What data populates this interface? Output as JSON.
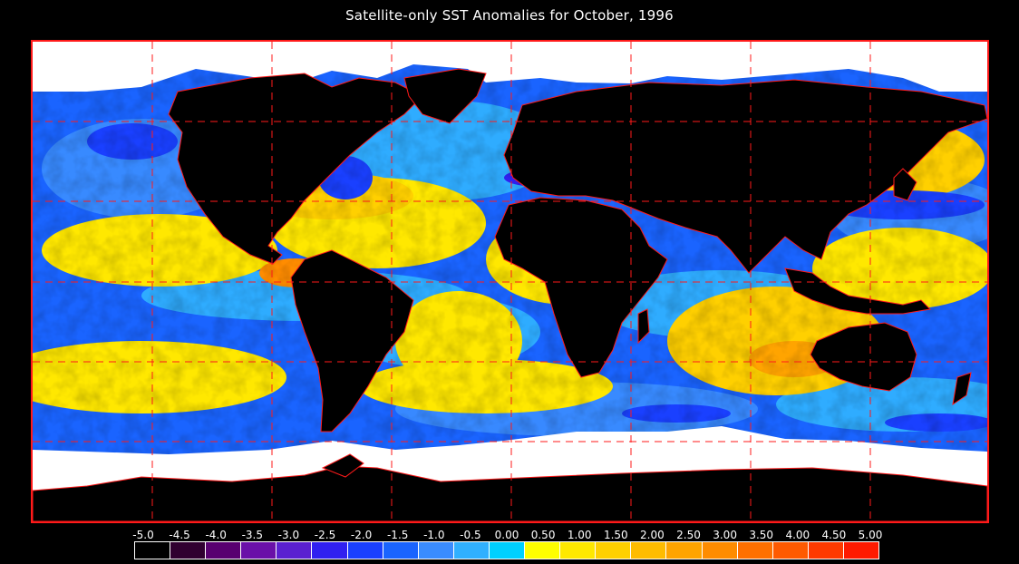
{
  "title": "Satellite-only SST Anomalies for October, 1996",
  "legend": {
    "tick_labels": [
      "-5.0",
      "-4.5",
      "-4.0",
      "-3.5",
      "-3.0",
      "-2.5",
      "-2.0",
      "-1.5",
      "-1.0",
      "-0.5",
      "0.00",
      "0.50",
      "1.00",
      "1.50",
      "2.00",
      "2.50",
      "3.00",
      "3.50",
      "4.00",
      "4.50",
      "5.00"
    ],
    "colors": [
      "#000000",
      "#300030",
      "#580070",
      "#6a10a8",
      "#5a20d0",
      "#3020f0",
      "#1a40ff",
      "#1a64ff",
      "#3a8cff",
      "#30b0ff",
      "#00d0ff",
      "#ffff00",
      "#ffe800",
      "#ffd000",
      "#ffbc00",
      "#ffa400",
      "#ff8c00",
      "#ff7000",
      "#ff5a00",
      "#ff3a00",
      "#ff1a00"
    ]
  },
  "map": {
    "land_color": "#000000",
    "ice_color": "#ffffff",
    "boundary_color": "#ff1a1a",
    "grid_color": "#ff1a1a",
    "grid_style": "dashed"
  }
}
